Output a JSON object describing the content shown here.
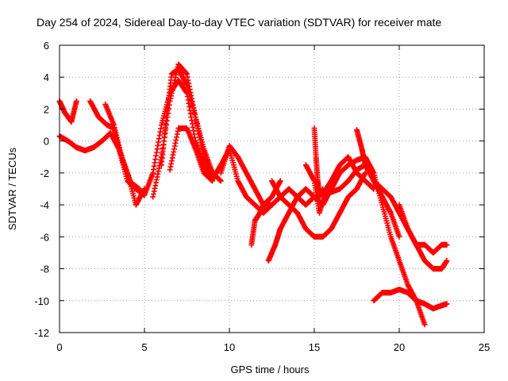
{
  "chart_data": {
    "type": "scatter",
    "title": "Day 254 of 2024, Sidereal Day-to-day VTEC variation (SDTVAR) for receiver mate",
    "xlabel": "GPS time / hours",
    "ylabel": "SDTVAR / TECUs",
    "xlim": [
      0,
      25
    ],
    "ylim": [
      -12,
      6
    ],
    "xticks": [
      0,
      5,
      10,
      15,
      20,
      25
    ],
    "yticks": [
      -12,
      -10,
      -8,
      -6,
      -4,
      -2,
      0,
      2,
      4,
      6
    ],
    "grid": true,
    "marker": "+",
    "color": "#ff0000",
    "series": [
      {
        "name": "s1",
        "x": [
          0,
          0.5,
          1.0,
          1.5,
          2.0,
          2.5,
          3.0,
          3.5,
          4.0,
          4.5,
          5.0,
          5.5,
          6.0,
          6.5,
          7.0,
          7.5,
          8.0,
          8.5,
          9.0,
          9.5,
          10.0,
          10.5,
          11.0,
          11.5,
          12.0,
          12.5,
          13.0,
          13.5,
          14.0,
          14.5,
          15.0
        ],
        "y": [
          0.3,
          0.0,
          -0.4,
          -0.6,
          -0.4,
          0.0,
          0.5,
          -0.5,
          -2.5,
          -3.0,
          -3.4,
          -2.0,
          1.0,
          3.0,
          3.8,
          3.0,
          0.0,
          -1.5,
          -2.4,
          -1.5,
          -0.5,
          -2.5,
          -3.5,
          -4.0,
          -4.5,
          -4.0,
          -3.5,
          -3.0,
          -3.5,
          -4.0,
          -3.5
        ]
      },
      {
        "name": "s2",
        "x": [
          0,
          0.3,
          0.7,
          1.0
        ],
        "y": [
          2.5,
          1.8,
          1.2,
          2.5
        ]
      },
      {
        "name": "s3",
        "x": [
          1.8,
          2.3,
          2.8,
          3.2,
          3.5,
          4.0,
          4.5,
          5.0
        ],
        "y": [
          2.5,
          1.5,
          1.0,
          0.8,
          -0.5,
          -2.0,
          -4.0,
          -3.0
        ]
      },
      {
        "name": "s4",
        "x": [
          2.7,
          3.2,
          3.7,
          4.2,
          4.7
        ],
        "y": [
          2.3,
          1.0,
          -1.2,
          -2.6,
          -3.0
        ]
      },
      {
        "name": "s5",
        "x": [
          5.5,
          6.0,
          6.5,
          7.0,
          7.5,
          8.0,
          8.5,
          9.0,
          9.5
        ],
        "y": [
          -3.5,
          -1.0,
          2.5,
          4.8,
          4.2,
          1.5,
          -1.0,
          -2.0,
          -2.5
        ]
      },
      {
        "name": "s6",
        "x": [
          6.0,
          6.3,
          6.6,
          7.0,
          7.5,
          8.0,
          8.5,
          9.0
        ],
        "y": [
          -1.5,
          1.5,
          4.2,
          4.5,
          3.5,
          1.5,
          -0.5,
          -2.0
        ]
      },
      {
        "name": "s7",
        "x": [
          6.5,
          7.0,
          7.5,
          8.0,
          8.5,
          9.0
        ],
        "y": [
          -1.8,
          0.8,
          0.8,
          -0.5,
          -2.0,
          -2.5
        ]
      },
      {
        "name": "s8",
        "x": [
          9.5,
          10.0,
          10.5,
          11.0,
          11.5,
          12.0,
          12.5
        ],
        "y": [
          -2.0,
          -0.3,
          -1.0,
          -2.0,
          -3.0,
          -4.0,
          -4.0
        ]
      },
      {
        "name": "s9",
        "x": [
          11.3,
          11.5,
          11.8,
          12.0,
          12.5,
          13.0
        ],
        "y": [
          -6.5,
          -5.0,
          -4.5,
          -4.0,
          -3.5,
          -2.5
        ]
      },
      {
        "name": "s10",
        "x": [
          12.3,
          12.7,
          13.0,
          13.5,
          14.0,
          14.5,
          15.0,
          15.5,
          16.0,
          16.5,
          17.0
        ],
        "y": [
          -7.5,
          -6.5,
          -5.5,
          -4.5,
          -3.5,
          -3.0,
          -3.5,
          -4.0,
          -3.0,
          -2.0,
          -1.5
        ]
      },
      {
        "name": "s11",
        "x": [
          12.5,
          13.0,
          13.5,
          14.0,
          14.5,
          15.0,
          15.5,
          16.0,
          16.5,
          17.0,
          17.5,
          18.0
        ],
        "y": [
          -2.5,
          -3.5,
          -4.0,
          -4.5,
          -5.5,
          -6.0,
          -6.0,
          -5.5,
          -4.5,
          -3.5,
          -3.0,
          -2.0
        ]
      },
      {
        "name": "s12",
        "x": [
          14.5,
          15.0,
          15.3,
          15.7,
          16.0
        ],
        "y": [
          -1.5,
          -2.5,
          -4.5,
          -3.0,
          -2.5
        ]
      },
      {
        "name": "s13",
        "x": [
          15.0,
          15.1,
          15.2,
          15.3,
          15.5
        ],
        "y": [
          0.8,
          -1.0,
          -2.5,
          -3.5,
          -3.0
        ]
      },
      {
        "name": "s14",
        "x": [
          15.5,
          16.0,
          16.5,
          17.0,
          17.5,
          18.0
        ],
        "y": [
          -3.5,
          -3.2,
          -3.0,
          -2.5,
          -1.8,
          -1.5
        ]
      },
      {
        "name": "s15",
        "x": [
          16.0,
          16.5,
          17.0,
          17.5,
          18.0,
          18.5
        ],
        "y": [
          -2.5,
          -1.5,
          -1.0,
          -2.0,
          -2.5,
          -3.0
        ]
      },
      {
        "name": "s16",
        "x": [
          17.5,
          17.8,
          18.0,
          18.5,
          19.0,
          19.5,
          20.0
        ],
        "y": [
          0.7,
          -0.5,
          -1.5,
          -2.5,
          -3.5,
          -4.5,
          -6.0
        ]
      },
      {
        "name": "s17",
        "x": [
          17.0,
          17.5,
          18.0,
          18.5,
          19.0,
          19.5,
          20.0,
          20.5,
          21.0,
          21.5
        ],
        "y": [
          -1.5,
          -1.2,
          -1.0,
          -2.0,
          -4.0,
          -6.0,
          -7.5,
          -9.0,
          -10.0,
          -11.5
        ]
      },
      {
        "name": "s18",
        "x": [
          18.5,
          19.0,
          19.5,
          20.0,
          20.5,
          21.0,
          21.5,
          22.0,
          22.5,
          22.8
        ],
        "y": [
          -2.5,
          -3.0,
          -3.5,
          -4.5,
          -5.5,
          -6.5,
          -7.5,
          -8.0,
          -8.0,
          -7.5
        ]
      },
      {
        "name": "s19",
        "x": [
          20.0,
          20.5,
          21.0,
          21.5,
          22.0,
          22.5,
          22.8
        ],
        "y": [
          -4.0,
          -5.5,
          -6.5,
          -6.5,
          -7.0,
          -6.5,
          -6.5
        ]
      },
      {
        "name": "s20",
        "x": [
          18.5,
          19.0,
          19.5,
          20.0,
          20.5,
          21.0,
          21.5,
          22.0,
          22.5,
          22.8
        ],
        "y": [
          -10.0,
          -9.5,
          -9.5,
          -9.3,
          -9.5,
          -10.0,
          -10.2,
          -10.5,
          -10.3,
          -10.2
        ]
      }
    ]
  }
}
